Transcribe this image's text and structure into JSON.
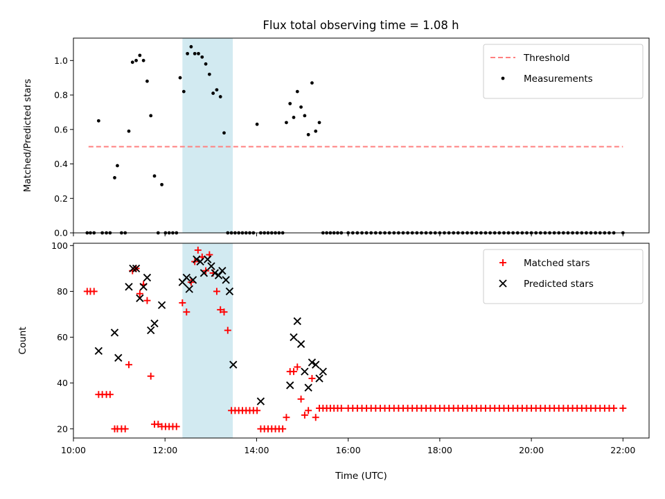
{
  "title": "Flux total observing time = 1.08 h",
  "chart_data": [
    {
      "type": "scatter",
      "ylabel": "Matched/Predicted stars",
      "xlim": [
        10.0,
        22.57
      ],
      "ylim": [
        0,
        1.13
      ],
      "yticks": [
        0.0,
        0.2,
        0.4,
        0.6,
        0.8,
        1.0
      ],
      "ytick_labels": [
        "0.0",
        "0.2",
        "0.4",
        "0.6",
        "0.8",
        "1.0"
      ],
      "xticks": [
        10,
        12,
        14,
        16,
        18,
        20,
        22
      ],
      "show_x_tick_labels": false,
      "highlight_span": [
        12.38,
        13.48
      ],
      "legend_position": "top-right",
      "threshold": {
        "name": "Threshold",
        "value": 0.5,
        "x_range": [
          10.33,
          22.0
        ],
        "color": "#ff8080",
        "style": "dashed"
      },
      "series": [
        {
          "name": "Measurements",
          "color": "#000000",
          "marker": "dot",
          "x": [
            10.3,
            10.37,
            10.45,
            10.55,
            10.63,
            10.72,
            10.8,
            10.9,
            10.96,
            11.05,
            11.13,
            11.21,
            11.29,
            11.37,
            11.45,
            11.53,
            11.61,
            11.69,
            11.77,
            11.85,
            11.93,
            12.01,
            12.09,
            12.17,
            12.25,
            12.33,
            12.41,
            12.49,
            12.57,
            12.65,
            12.73,
            12.81,
            12.89,
            12.97,
            13.05,
            13.13,
            13.21,
            13.29,
            13.37,
            13.45,
            13.53,
            13.61,
            13.69,
            13.77,
            13.85,
            13.93,
            14.01,
            14.09,
            14.17,
            14.25,
            14.33,
            14.41,
            14.49,
            14.57,
            14.65,
            14.73,
            14.81,
            14.89,
            14.97,
            15.05,
            15.13,
            15.21,
            15.29,
            15.37,
            15.45,
            15.53,
            15.61,
            15.69,
            15.77,
            15.85,
            16.0,
            16.1,
            16.2,
            16.3,
            16.4,
            16.5,
            16.6,
            16.7,
            16.8,
            16.9,
            17.0,
            17.1,
            17.2,
            17.3,
            17.4,
            17.5,
            17.6,
            17.7,
            17.8,
            17.9,
            18.0,
            18.1,
            18.2,
            18.3,
            18.4,
            18.5,
            18.6,
            18.7,
            18.8,
            18.9,
            19.0,
            19.1,
            19.2,
            19.3,
            19.4,
            19.5,
            19.6,
            19.7,
            19.8,
            19.9,
            20.0,
            20.1,
            20.2,
            20.3,
            20.4,
            20.5,
            20.6,
            20.7,
            20.8,
            20.9,
            21.0,
            21.1,
            21.2,
            21.3,
            21.4,
            21.5,
            21.6,
            21.7,
            21.8,
            22.0
          ],
          "y": [
            0,
            0,
            0,
            0.65,
            0,
            0,
            0,
            0.32,
            0.39,
            0,
            0,
            0.59,
            0.99,
            1.0,
            1.03,
            1.0,
            0.88,
            0.68,
            0.33,
            0,
            0.28,
            0,
            0,
            0,
            0,
            0.9,
            0.82,
            1.04,
            1.08,
            1.04,
            1.04,
            1.02,
            0.98,
            0.92,
            0.81,
            0.83,
            0.79,
            0.58,
            0,
            0,
            0,
            0,
            0,
            0,
            0,
            0,
            0.63,
            0,
            0,
            0,
            0,
            0,
            0,
            0,
            0.64,
            0.75,
            0.67,
            0.82,
            0.73,
            0.68,
            0.57,
            0.87,
            0.59,
            0.64,
            0,
            0,
            0,
            0,
            0,
            0,
            0,
            0,
            0,
            0,
            0,
            0,
            0,
            0,
            0,
            0,
            0,
            0,
            0,
            0,
            0,
            0,
            0,
            0,
            0,
            0,
            0,
            0,
            0,
            0,
            0,
            0,
            0,
            0,
            0,
            0,
            0,
            0,
            0,
            0,
            0,
            0,
            0,
            0,
            0,
            0,
            0,
            0,
            0,
            0,
            0,
            0,
            0,
            0,
            0,
            0,
            0,
            0,
            0,
            0,
            0,
            0,
            0,
            0,
            0,
            0
          ]
        }
      ]
    },
    {
      "type": "scatter",
      "xlabel": "Time (UTC)",
      "ylabel": "Count",
      "xlim": [
        10.0,
        22.57
      ],
      "ylim": [
        16,
        101
      ],
      "yticks": [
        20,
        40,
        60,
        80,
        100
      ],
      "ytick_labels": [
        "20",
        "40",
        "60",
        "80",
        "100"
      ],
      "xticks": [
        10,
        12,
        14,
        16,
        18,
        20,
        22
      ],
      "xtick_labels": [
        "10:00",
        "12:00",
        "14:00",
        "16:00",
        "18:00",
        "20:00",
        "22:00"
      ],
      "highlight_span": [
        12.38,
        13.48
      ],
      "legend_position": "top-right",
      "series": [
        {
          "name": "Matched stars",
          "color": "#ff0000",
          "marker": "plus",
          "x": [
            10.3,
            10.37,
            10.45,
            10.55,
            10.63,
            10.72,
            10.8,
            10.9,
            10.96,
            11.05,
            11.13,
            11.21,
            11.29,
            11.37,
            11.45,
            11.53,
            11.61,
            11.69,
            11.77,
            11.85,
            11.93,
            12.01,
            12.09,
            12.17,
            12.25,
            12.38,
            12.47,
            12.57,
            12.65,
            12.72,
            12.81,
            12.89,
            12.97,
            13.05,
            13.13,
            13.21,
            13.29,
            13.37,
            13.45,
            13.53,
            13.61,
            13.69,
            13.77,
            13.85,
            13.93,
            14.01,
            14.09,
            14.17,
            14.25,
            14.33,
            14.41,
            14.49,
            14.57,
            14.65,
            14.73,
            14.81,
            14.89,
            14.97,
            15.05,
            15.13,
            15.21,
            15.29,
            15.37,
            15.45,
            15.53,
            15.61,
            15.69,
            15.77,
            15.85,
            16.0,
            16.1,
            16.2,
            16.3,
            16.4,
            16.5,
            16.6,
            16.7,
            16.8,
            16.9,
            17.0,
            17.1,
            17.2,
            17.3,
            17.4,
            17.5,
            17.6,
            17.7,
            17.8,
            17.9,
            18.0,
            18.1,
            18.2,
            18.3,
            18.4,
            18.5,
            18.6,
            18.7,
            18.8,
            18.9,
            19.0,
            19.1,
            19.2,
            19.3,
            19.4,
            19.5,
            19.6,
            19.7,
            19.8,
            19.9,
            20.0,
            20.1,
            20.2,
            20.3,
            20.4,
            20.5,
            20.6,
            20.7,
            20.8,
            20.9,
            21.0,
            21.1,
            21.2,
            21.3,
            21.4,
            21.5,
            21.6,
            21.7,
            21.8,
            22.0
          ],
          "y": [
            80,
            80,
            80,
            35,
            35,
            35,
            35,
            20,
            20,
            20,
            20,
            48,
            89,
            90,
            79,
            83,
            76,
            43,
            22,
            22,
            21,
            21,
            21,
            21,
            21,
            75,
            71,
            84,
            93,
            98,
            95,
            89,
            96,
            88,
            80,
            72,
            71,
            63,
            28,
            28,
            28,
            28,
            28,
            28,
            28,
            28,
            20,
            20,
            20,
            20,
            20,
            20,
            20,
            25,
            45,
            45,
            47,
            33,
            26,
            28,
            42,
            25,
            29,
            29,
            29,
            29,
            29,
            29,
            29,
            29,
            29,
            29,
            29,
            29,
            29,
            29,
            29,
            29,
            29,
            29,
            29,
            29,
            29,
            29,
            29,
            29,
            29,
            29,
            29,
            29,
            29,
            29,
            29,
            29,
            29,
            29,
            29,
            29,
            29,
            29,
            29,
            29,
            29,
            29,
            29,
            29,
            29,
            29,
            29,
            29,
            29,
            29,
            29,
            29,
            29,
            29,
            29,
            29,
            29,
            29,
            29,
            29,
            29,
            29,
            29,
            29,
            29,
            29,
            29
          ]
        },
        {
          "name": "Predicted stars",
          "color": "#000000",
          "marker": "x",
          "x": [
            10.55,
            10.9,
            10.98,
            11.21,
            11.3,
            11.37,
            11.45,
            11.53,
            11.61,
            11.69,
            11.77,
            11.93,
            12.38,
            12.47,
            12.53,
            12.61,
            12.69,
            12.77,
            12.85,
            12.93,
            13.01,
            13.09,
            13.17,
            13.25,
            13.33,
            13.41,
            13.49,
            14.09,
            14.73,
            14.81,
            14.89,
            14.97,
            15.05,
            15.13,
            15.21,
            15.29,
            15.37,
            15.45
          ],
          "y": [
            54,
            62,
            51,
            82,
            90,
            90,
            77,
            82,
            86,
            63,
            66,
            74,
            84,
            86,
            81,
            85,
            94,
            93,
            88,
            94,
            91,
            88,
            87,
            89,
            85,
            80,
            48,
            32,
            39,
            60,
            67,
            57,
            45,
            38,
            49,
            48,
            42,
            45
          ]
        }
      ]
    }
  ]
}
